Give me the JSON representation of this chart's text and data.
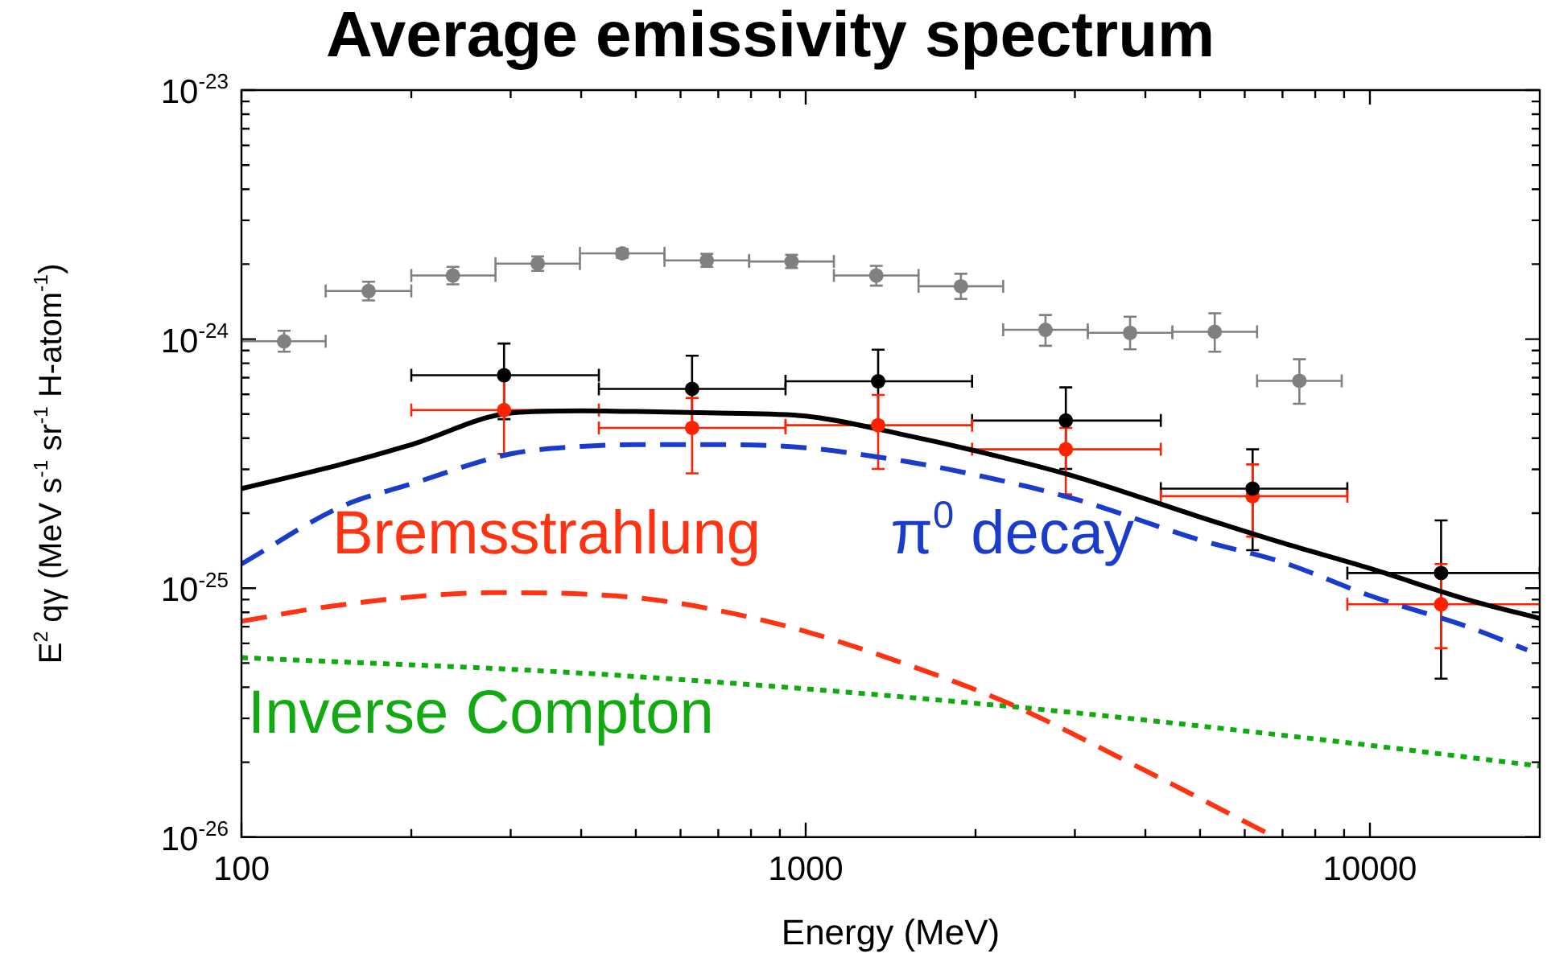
{
  "chart_data": {
    "type": "scatter",
    "title": "Average emissivity spectrum",
    "xlabel": "Energy (MeV)",
    "ylabel": "E$^{2}$ qγ (MeV s$^{-1}$ sr$^{-1}$ H-atom$^{-1}$)",
    "log": "xy",
    "xlim": [
      100,
      20000
    ],
    "ylim": [
      1e-26,
      1e-23
    ],
    "xticks": [
      100,
      {
        "value": 200,
        "label": null
      },
      {
        "value": 300,
        "label": null
      },
      {
        "value": 400,
        "label": null
      },
      {
        "value": 500,
        "label": null
      },
      {
        "value": 600,
        "label": null
      },
      {
        "value": 700,
        "label": null
      },
      {
        "value": 800,
        "label": null
      },
      {
        "value": 900,
        "label": null
      },
      1000,
      {
        "value": 2000,
        "label": null
      },
      {
        "value": 3000,
        "label": null
      },
      {
        "value": 4000,
        "label": null
      },
      {
        "value": 5000,
        "label": null
      },
      {
        "value": 6000,
        "label": null
      },
      {
        "value": 7000,
        "label": null
      },
      {
        "value": 8000,
        "label": null
      },
      {
        "value": 9000,
        "label": null
      },
      10000
    ],
    "yticks": [
      {
        "value": 1e-26,
        "label": "10$^{-26}$"
      },
      {
        "value": 2e-26,
        "label": null
      },
      {
        "value": 3e-26,
        "label": null
      },
      {
        "value": 4e-26,
        "label": null
      },
      {
        "value": 5e-26,
        "label": null
      },
      {
        "value": 6e-26,
        "label": null
      },
      {
        "value": 7e-26,
        "label": null
      },
      {
        "value": 8e-26,
        "label": null
      },
      {
        "value": 9e-26,
        "label": null
      },
      {
        "value": 1e-25,
        "label": "10$^{-25}$"
      },
      {
        "value": 2e-25,
        "label": null
      },
      {
        "value": 3e-25,
        "label": null
      },
      {
        "value": 4e-25,
        "label": null
      },
      {
        "value": 5e-25,
        "label": null
      },
      {
        "value": 6e-25,
        "label": null
      },
      {
        "value": 7e-25,
        "label": null
      },
      {
        "value": 8e-25,
        "label": null
      },
      {
        "value": 9e-25,
        "label": null
      },
      {
        "value": 1e-24,
        "label": "10$^{-24}$"
      },
      {
        "value": 2e-24,
        "label": null
      },
      {
        "value": 3e-24,
        "label": null
      },
      {
        "value": 4e-24,
        "label": null
      },
      {
        "value": 5e-24,
        "label": null
      },
      {
        "value": 6e-24,
        "label": null
      },
      {
        "value": 7e-24,
        "label": null
      },
      {
        "value": 8e-24,
        "label": null
      },
      {
        "value": 9e-24,
        "label": null
      },
      {
        "value": 1e-23,
        "label": "10$^{-23}$"
      }
    ],
    "series": [
      {
        "color": "#808080",
        "marker": "circle",
        "x": [
          119,
          168,
          237,
          335,
          473,
          668,
          944,
          1334,
          1884,
          2661,
          3758,
          5309,
          7499
        ],
        "values": [
          9.8e-25,
          1.56e-24,
          1.8e-24,
          2.01e-24,
          2.21e-24,
          2.07e-24,
          2.05e-24,
          1.8e-24,
          1.63e-24,
          1.09e-24,
          1.06e-24,
          1.07e-24,
          6.8e-25
        ],
        "errors": [
          [
            8.9e-25,
            1.08e-24
          ],
          [
            1.43e-24,
            1.7e-24
          ],
          [
            1.66e-24,
            1.95e-24
          ],
          [
            1.88e-24,
            2.15e-24
          ],
          [
            2.12e-24,
            2.3e-24
          ],
          [
            1.95e-24,
            2.2e-24
          ],
          [
            1.93e-24,
            2.18e-24
          ],
          [
            1.64e-24,
            1.97e-24
          ],
          [
            1.45e-24,
            1.83e-24
          ],
          [
            9.4e-25,
            1.25e-24
          ],
          [
            9.1e-25,
            1.23e-24
          ],
          [
            8.9e-25,
            1.27e-24
          ],
          [
            5.5e-25,
            8.3e-25
          ]
        ],
        "xerrors": [
          [
            100,
            141
          ],
          [
            141,
            200
          ],
          [
            200,
            282
          ],
          [
            282,
            398
          ],
          [
            398,
            562
          ],
          [
            562,
            794
          ],
          [
            794,
            1122
          ],
          [
            1122,
            1585
          ],
          [
            1585,
            2239
          ],
          [
            2239,
            3162
          ],
          [
            3162,
            4467
          ],
          [
            4467,
            6310
          ],
          [
            6310,
            8913
          ]
        ]
      },
      {
        "color": "#000000",
        "marker": "circle",
        "x": [
          292,
          629,
          1344,
          2891,
          6196,
          13370
        ],
        "values": [
          7.16e-25,
          6.31e-25,
          6.77e-25,
          4.71e-25,
          2.51e-25,
          1.15e-25
        ],
        "errors": [
          [
            4.77e-25,
            9.6e-25
          ],
          [
            4.4e-25,
            8.58e-25
          ],
          [
            4.4e-25,
            9.07e-25
          ],
          [
            3.01e-25,
            6.4e-25
          ],
          [
            1.42e-25,
            3.61e-25
          ],
          [
            4.33e-26,
            1.87e-25
          ]
        ],
        "xerrors": [
          [
            200,
            430
          ],
          [
            430,
            921
          ],
          [
            921,
            1972
          ],
          [
            1972,
            4260
          ],
          [
            4260,
            9120
          ],
          [
            9120,
            20000
          ]
        ]
      },
      {
        "color": "#ff2200",
        "marker": "circle",
        "x": [
          292,
          629,
          1344,
          2891,
          6196,
          13370
        ],
        "values": [
          5.19e-25,
          4.4e-25,
          4.51e-25,
          3.61e-25,
          2.34e-25,
          8.61e-26
        ],
        "errors": [
          [
            3.46e-25,
            7.2e-25
          ],
          [
            2.89e-25,
            5.8e-25
          ],
          [
            3.01e-25,
            5.97e-25
          ],
          [
            2.38e-25,
            4.4e-25
          ],
          [
            1.61e-25,
            3.14e-25
          ],
          [
            5.74e-26,
            1.25e-25
          ]
        ],
        "xerrors": [
          [
            200,
            430
          ],
          [
            430,
            921
          ],
          [
            921,
            1972
          ],
          [
            1972,
            4260
          ],
          [
            4260,
            9120
          ],
          [
            9120,
            20000
          ]
        ]
      },
      {
        "type": "line",
        "color": "#000000",
        "marker": "none",
        "line_style": "solid",
        "x": [
          100,
          150,
          200,
          300,
          400,
          500,
          700,
          1000,
          1500,
          2000,
          3000,
          5000,
          7000,
          10000,
          15000,
          20000
        ],
        "values": [
          2.51e-25,
          3.14e-25,
          3.77e-25,
          5.05e-25,
          5.15e-25,
          5.12e-25,
          5.05e-25,
          4.91e-25,
          4.12e-25,
          3.56e-25,
          2.81e-25,
          1.93e-25,
          1.52e-25,
          1.2e-25,
          8.95e-26,
          7.56e-26
        ]
      },
      {
        "type": "line",
        "name": "π$^{0}$ decay",
        "color": "#1a3ccc",
        "marker": "none",
        "line_style": "dashed",
        "x": [
          100,
          150,
          200,
          300,
          400,
          500,
          700,
          1000,
          1500,
          2000,
          3000,
          5000,
          7000,
          10000,
          15000,
          19000
        ],
        "values": [
          1.25e-25,
          2.12e-25,
          2.62e-25,
          3.46e-25,
          3.71e-25,
          3.77e-25,
          3.77e-25,
          3.66e-25,
          3.23e-25,
          2.85e-25,
          2.28e-25,
          1.56e-25,
          1.27e-25,
          9.33e-26,
          6.96e-26,
          5.65e-26
        ]
      },
      {
        "type": "line",
        "name": "Bremsstrahlung",
        "color": "#ff3311",
        "marker": "none",
        "line_style": "dashed",
        "x": [
          100,
          144,
          279,
          520,
          897,
          1549,
          2313,
          3854,
          6790
        ],
        "values": [
          7.36e-26,
          8.46e-26,
          9.59e-26,
          9.07e-26,
          7.16e-26,
          4.84e-26,
          3.41e-26,
          1.93e-26,
          1e-26
        ]
      },
      {
        "type": "line",
        "name": "Inverse Compton",
        "color": "#11aa11",
        "marker": "none",
        "line_style": "dotted",
        "x": [
          100,
          433,
          2234,
          8000,
          20000
        ],
        "values": [
          5.26e-26,
          4.51e-26,
          3.37e-26,
          2.48e-26,
          1.93e-26
        ]
      }
    ]
  }
}
